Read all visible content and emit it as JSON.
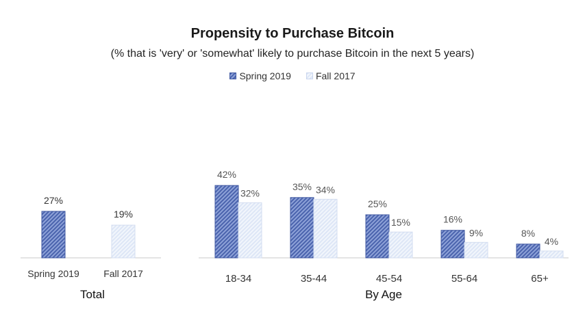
{
  "chart_data": {
    "type": "bar",
    "title": "Propensity to Purchase Bitcoin",
    "subtitle": "(% that is 'very' or 'somewhat' likely to purchase Bitcoin in the next 5 years)",
    "legend": [
      "Spring 2019",
      "Fall 2017"
    ],
    "legend_position": "top-center",
    "grid": false,
    "value_format": "percent",
    "colors": {
      "spring_2019": "#5a73b8",
      "fall_2017": "#e6ecf8"
    },
    "panels": [
      {
        "title": "Total",
        "categories": [
          "Spring 2019",
          "Fall 2017"
        ],
        "values": [
          27,
          19
        ],
        "labels": [
          "27%",
          "19%"
        ]
      },
      {
        "title": "By Age",
        "categories": [
          "18-34",
          "35-44",
          "45-54",
          "55-64",
          "65+"
        ],
        "series": [
          {
            "name": "Spring 2019",
            "values": [
              42,
              35,
              25,
              16,
              8
            ],
            "labels": [
              "42%",
              "35%",
              "25%",
              "16%",
              "8%"
            ]
          },
          {
            "name": "Fall 2017",
            "values": [
              32,
              34,
              15,
              9,
              4
            ],
            "labels": [
              "32%",
              "34%",
              "15%",
              "9%",
              "4%"
            ]
          }
        ]
      }
    ]
  }
}
